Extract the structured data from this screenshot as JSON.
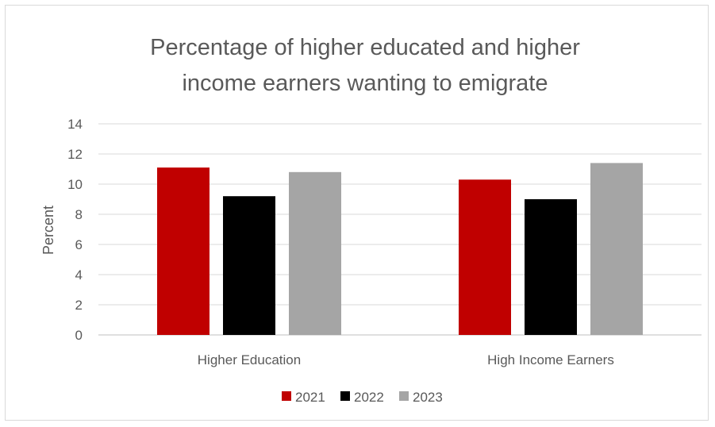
{
  "chart_data": {
    "type": "bar",
    "title_lines": [
      "Percentage of higher educated and higher",
      "income earners wanting to emigrate"
    ],
    "xlabel": "",
    "ylabel": "Percent",
    "categories": [
      "Higher Education",
      "High Income Earners"
    ],
    "series": [
      {
        "name": "2021",
        "color": "#c00000",
        "values": [
          11.1,
          10.3
        ]
      },
      {
        "name": "2022",
        "color": "#000000",
        "values": [
          9.2,
          9.0
        ]
      },
      {
        "name": "2023",
        "color": "#a5a5a5",
        "values": [
          10.8,
          11.4
        ]
      }
    ],
    "ylim": [
      0,
      14
    ],
    "yticks": [
      0,
      2,
      4,
      6,
      8,
      10,
      12,
      14
    ],
    "grid": true,
    "legend_position": "bottom"
  }
}
